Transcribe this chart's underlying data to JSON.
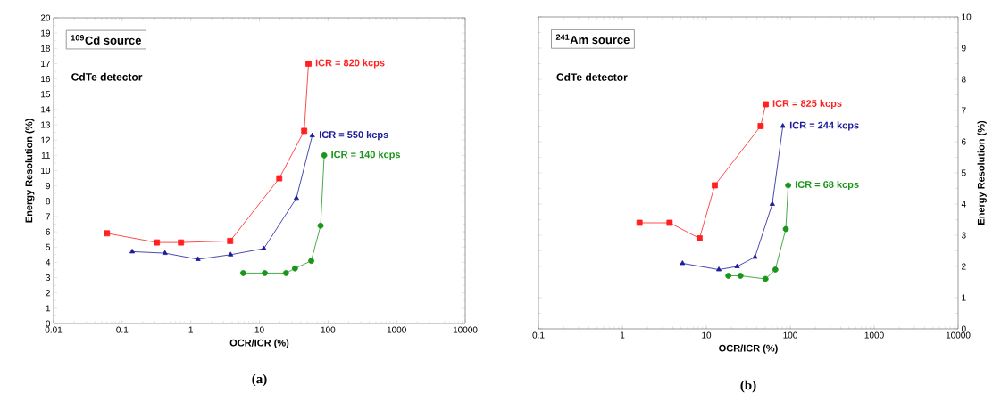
{
  "chart_data": [
    {
      "type": "line",
      "title": "$^{109}$Cd source",
      "xlabel": "OCR/ICR (%)",
      "ylabel": "Energy Resolution (%)",
      "log": "x",
      "legend": false,
      "grid": false,
      "xlim": [
        0.01,
        10000
      ],
      "xticks": [
        0.01,
        0.1,
        1,
        10,
        100,
        1000,
        10000
      ],
      "ylim": [
        0,
        20
      ],
      "yticks": [
        0,
        1,
        2,
        3,
        4,
        5,
        6,
        7,
        8,
        9,
        10,
        11,
        12,
        13,
        14,
        15,
        16,
        17,
        18,
        19,
        20
      ],
      "annotations": [
        "CdTe detector",
        "(a)"
      ],
      "series": [
        {
          "name": "ICR = 820 kcps",
          "color": "#ff2020",
          "marker": "square",
          "x": [
            0.06,
            0.32,
            0.72,
            3.75,
            19.5,
            45,
            52
          ],
          "values": [
            5.9,
            5.3,
            5.3,
            5.4,
            9.5,
            12.6,
            17.0
          ]
        },
        {
          "name": "ICR = 550 kcps",
          "color": "#1c1c9c",
          "marker": "triangle",
          "x": [
            0.14,
            0.42,
            1.27,
            3.8,
            11.6,
            34.6,
            59
          ],
          "values": [
            4.7,
            4.6,
            4.2,
            4.5,
            4.9,
            8.2,
            12.3
          ]
        },
        {
          "name": "ICR = 140 kcps",
          "color": "#1a951a",
          "marker": "circle",
          "x": [
            5.8,
            12,
            24.4,
            33,
            57,
            78,
            88
          ],
          "values": [
            3.3,
            3.3,
            3.3,
            3.6,
            4.1,
            6.4,
            11.0
          ]
        }
      ]
    },
    {
      "type": "line",
      "title": "$^{241}$Am source",
      "xlabel": "OCR/ICR (%)",
      "y2label": "Energy Resolution (%)",
      "log": "x",
      "legend": false,
      "grid": false,
      "xlim": [
        0.1,
        10000
      ],
      "xticks": [
        0.1,
        1,
        10,
        100,
        1000,
        10000
      ],
      "y2lim": [
        0,
        10
      ],
      "y2ticks": [
        0,
        1,
        2,
        3,
        4,
        5,
        6,
        7,
        8,
        9,
        10
      ],
      "annotations": [
        "CdTe detector",
        "(b)"
      ],
      "series": [
        {
          "name": "ICR = 825 kcps",
          "color": "#ff2020",
          "marker": "square",
          "axis": "y2",
          "x": [
            1.6,
            3.65,
            8.3,
            12.6,
            44.4,
            51
          ],
          "values": [
            3.4,
            3.4,
            2.9,
            4.6,
            6.5,
            7.2
          ]
        },
        {
          "name": "ICR = 244 kcps",
          "color": "#1c1c9c",
          "marker": "triangle",
          "axis": "y2",
          "x": [
            5.2,
            14.1,
            23.3,
            38,
            61,
            81.5
          ],
          "values": [
            2.1,
            1.9,
            2.0,
            2.3,
            4.0,
            6.5
          ]
        },
        {
          "name": "ICR = 68 kcps",
          "color": "#1a951a",
          "marker": "circle",
          "axis": "y2",
          "x": [
            18.3,
            25.5,
            50.7,
            66.4,
            88.5,
            94.4
          ],
          "values": [
            1.7,
            1.7,
            1.6,
            1.9,
            3.2,
            4.6
          ]
        }
      ]
    }
  ]
}
